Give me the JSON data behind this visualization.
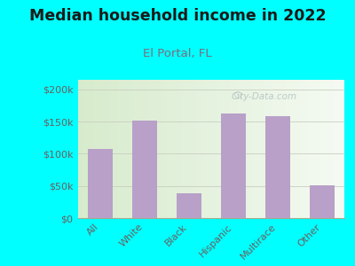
{
  "title": "Median household income in 2022",
  "subtitle": "El Portal, FL",
  "categories": [
    "All",
    "White",
    "Black",
    "Hispanic",
    "Multirace",
    "Other"
  ],
  "values": [
    108000,
    151000,
    38000,
    163000,
    158000,
    51000
  ],
  "bar_color": "#b8a0c8",
  "title_fontsize": 12.5,
  "subtitle_fontsize": 9.5,
  "subtitle_color": "#7a6e7e",
  "bg_outer": "#00FFFF",
  "ylabel_ticks": [
    0,
    50000,
    100000,
    150000,
    200000
  ],
  "ylabel_labels": [
    "$0",
    "$50k",
    "$100k",
    "$150k",
    "$200k"
  ],
  "ylim": [
    0,
    215000
  ],
  "watermark": "City-Data.com",
  "tick_color": "#6a6060",
  "title_color": "#1a1a1a",
  "grid_color": "#c8cfc0",
  "spine_color": "#a0aa90"
}
